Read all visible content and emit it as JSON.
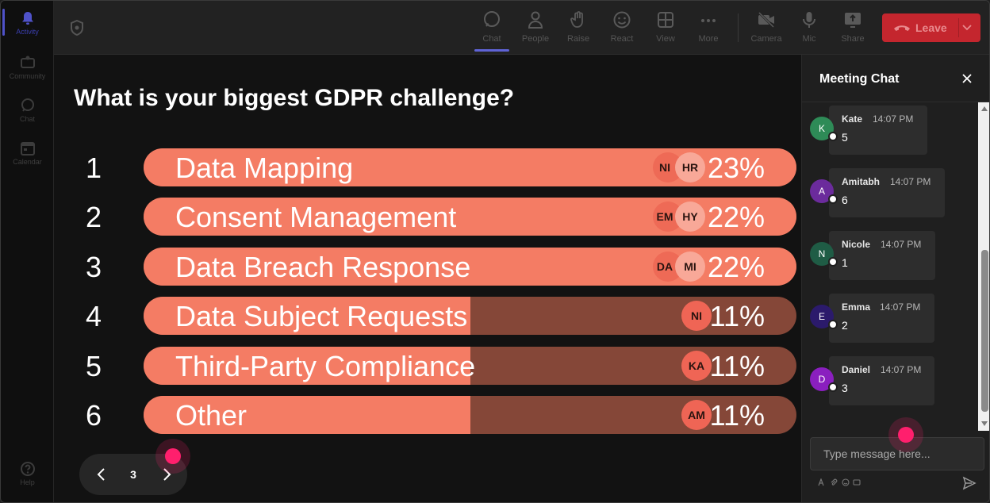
{
  "rail": {
    "items": [
      {
        "label": "Activity",
        "icon": "bell-icon"
      },
      {
        "label": "Community",
        "icon": "community-icon"
      },
      {
        "label": "Chat",
        "icon": "chat-icon"
      },
      {
        "label": "Calendar",
        "icon": "calendar-icon"
      }
    ],
    "help": {
      "label": "Help",
      "icon": "help-icon"
    }
  },
  "toolbar": {
    "buttons": [
      {
        "label": "Chat",
        "icon": "chat-icon"
      },
      {
        "label": "People",
        "icon": "people-icon"
      },
      {
        "label": "Raise",
        "icon": "raise-hand-icon"
      },
      {
        "label": "React",
        "icon": "smiley-icon"
      },
      {
        "label": "View",
        "icon": "grid-icon"
      },
      {
        "label": "More",
        "icon": "more-icon"
      },
      {
        "label": "Camera",
        "icon": "camera-off-icon"
      },
      {
        "label": "Mic",
        "icon": "mic-icon"
      },
      {
        "label": "Share",
        "icon": "share-icon"
      }
    ],
    "leave_label": "Leave",
    "leave_color": "#c4262e"
  },
  "poll": {
    "question": "What is your biggest GDPR challenge?",
    "accent": "#f47c64",
    "track": "#854738",
    "options": [
      {
        "rank": "1",
        "label": "Data Mapping",
        "percent": "23%",
        "fill": 1.0,
        "avatars": [
          "NI",
          "HR"
        ]
      },
      {
        "rank": "2",
        "label": "Consent Management",
        "percent": "22%",
        "fill": 1.0,
        "avatars": [
          "EM",
          "HY"
        ]
      },
      {
        "rank": "3",
        "label": "Data Breach Response",
        "percent": "22%",
        "fill": 1.0,
        "avatars": [
          "DA",
          "MI"
        ]
      },
      {
        "rank": "4",
        "label": "Data Subject Requests",
        "percent": "11%",
        "fill": 0.5,
        "avatars": [
          "NI"
        ]
      },
      {
        "rank": "5",
        "label": "Third-Party Compliance",
        "percent": "11%",
        "fill": 0.5,
        "avatars": [
          "KA"
        ]
      },
      {
        "rank": "6",
        "label": "Other",
        "percent": "11%",
        "fill": 0.5,
        "avatars": [
          "AM"
        ]
      }
    ],
    "page": "3"
  },
  "chat": {
    "title": "Meeting Chat",
    "messages": [
      {
        "initial": "K",
        "name": "Kate",
        "time": "14:07 PM",
        "text": "5",
        "color": "#2e8b57"
      },
      {
        "initial": "A",
        "name": "Amitabh",
        "time": "14:07 PM",
        "text": "6",
        "color": "#6b2b9c"
      },
      {
        "initial": "N",
        "name": "Nicole",
        "time": "14:07 PM",
        "text": "1",
        "color": "#1f5c45"
      },
      {
        "initial": "E",
        "name": "Emma",
        "time": "14:07 PM",
        "text": "2",
        "color": "#2b1a6b"
      },
      {
        "initial": "D",
        "name": "Daniel",
        "time": "14:07 PM",
        "text": "3",
        "color": "#8a1fbf"
      }
    ],
    "input_placeholder": "Type message here..."
  }
}
